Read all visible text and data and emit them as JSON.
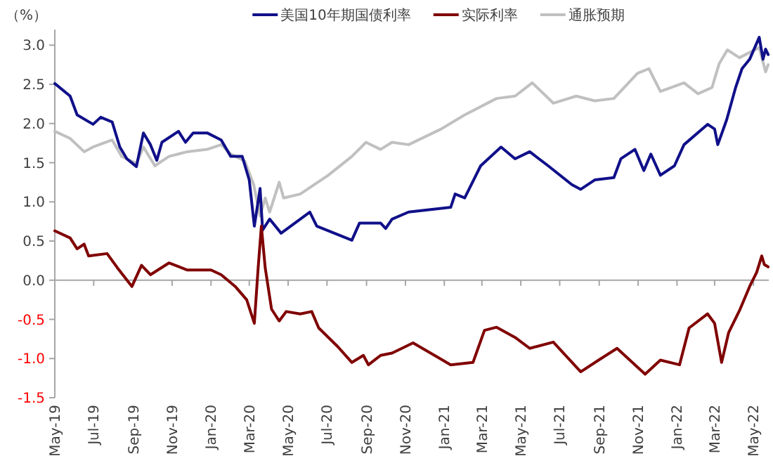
{
  "chart_data": {
    "type": "line",
    "ylabel": "（%）",
    "legend": "top",
    "marker": "none",
    "line_style": "solid",
    "xlim": [
      "2019-05-01",
      "2022-05-25"
    ],
    "ylim": [
      -1.5,
      3.2
    ],
    "yticks": [
      {
        "value": -1.5,
        "label": "-1.5"
      },
      {
        "value": -1,
        "label": "-1.0"
      },
      {
        "value": -0.5,
        "label": "-0.5"
      },
      {
        "value": 0,
        "label": "0.0"
      },
      {
        "value": 0.5,
        "label": "0.5"
      },
      {
        "value": 1,
        "label": "1.0"
      },
      {
        "value": 1.5,
        "label": "1.5"
      },
      {
        "value": 2,
        "label": "2.0"
      },
      {
        "value": 2.5,
        "label": "2.5"
      },
      {
        "value": 3,
        "label": "3.0"
      }
    ],
    "xticks": [
      {
        "value": "2019-05",
        "label": "May-19"
      },
      {
        "value": "2019-07",
        "label": "Jul-19"
      },
      {
        "value": "2019-09",
        "label": "Sep-19"
      },
      {
        "value": "2019-11",
        "label": "Nov-19"
      },
      {
        "value": "2020-01",
        "label": "Jan-20"
      },
      {
        "value": "2020-03",
        "label": "Mar-20"
      },
      {
        "value": "2020-05",
        "label": "May-20"
      },
      {
        "value": "2020-07",
        "label": "Jul-20"
      },
      {
        "value": "2020-09",
        "label": "Sep-20"
      },
      {
        "value": "2020-11",
        "label": "Nov-20"
      },
      {
        "value": "2021-01",
        "label": "Jan-21"
      },
      {
        "value": "2021-03",
        "label": "Mar-21"
      },
      {
        "value": "2021-05",
        "label": "May-21"
      },
      {
        "value": "2021-07",
        "label": "Jul-21"
      },
      {
        "value": "2021-09",
        "label": "Sep-21"
      },
      {
        "value": "2021-11",
        "label": "Nov-21"
      },
      {
        "value": "2022-01",
        "label": "Jan-22"
      },
      {
        "value": "2022-03",
        "label": "Mar-22"
      },
      {
        "value": "2022-05",
        "label": "May-22"
      }
    ],
    "series": [
      {
        "name": "美国10年期国债利率",
        "color": "#10108a",
        "x": [
          "2019-05-01",
          "2019-05-25",
          "2019-06-05",
          "2019-06-30",
          "2019-07-12",
          "2019-07-30",
          "2019-08-11",
          "2019-08-22",
          "2019-09-06",
          "2019-09-17",
          "2019-09-28",
          "2019-10-08",
          "2019-10-16",
          "2019-11-11",
          "2019-11-22",
          "2019-12-04",
          "2019-12-26",
          "2020-01-17",
          "2020-02-01",
          "2020-02-19",
          "2020-03-01",
          "2020-03-09",
          "2020-03-18",
          "2020-03-22",
          "2020-04-02",
          "2020-04-20",
          "2020-06-04",
          "2020-06-15",
          "2020-08-09",
          "2020-08-21",
          "2020-09-23",
          "2020-10-01",
          "2020-10-11",
          "2020-11-06",
          "2021-01-11",
          "2021-01-18",
          "2021-02-02",
          "2021-02-27",
          "2021-03-31",
          "2021-04-22",
          "2021-05-15",
          "2021-06-13",
          "2021-07-20",
          "2021-08-03",
          "2021-08-25",
          "2021-09-24",
          "2021-10-05",
          "2021-10-27",
          "2021-11-10",
          "2021-11-21",
          "2021-12-06",
          "2021-12-28",
          "2022-01-12",
          "2022-02-18",
          "2022-03-01",
          "2022-03-06",
          "2022-03-20",
          "2022-04-03",
          "2022-04-13",
          "2022-04-25",
          "2022-05-10",
          "2022-05-16",
          "2022-05-20",
          "2022-05-24"
        ],
        "values": [
          2.51,
          2.35,
          2.11,
          1.99,
          2.08,
          2.02,
          1.7,
          1.55,
          1.45,
          1.88,
          1.73,
          1.53,
          1.76,
          1.9,
          1.76,
          1.88,
          1.88,
          1.79,
          1.58,
          1.58,
          1.28,
          0.69,
          1.17,
          0.64,
          0.78,
          0.6,
          0.87,
          0.69,
          0.51,
          0.73,
          0.73,
          0.66,
          0.78,
          0.87,
          0.93,
          1.1,
          1.05,
          1.46,
          1.7,
          1.55,
          1.64,
          1.46,
          1.22,
          1.16,
          1.28,
          1.31,
          1.55,
          1.67,
          1.4,
          1.61,
          1.34,
          1.46,
          1.73,
          1.99,
          1.93,
          1.73,
          2.05,
          2.46,
          2.7,
          2.82,
          3.1,
          2.82,
          2.95,
          2.88
        ]
      },
      {
        "name": "实际利率",
        "color": "#800000",
        "x": [
          "2019-05-01",
          "2019-05-25",
          "2019-06-05",
          "2019-06-16",
          "2019-06-23",
          "2019-07-22",
          "2019-08-07",
          "2019-08-30",
          "2019-09-14",
          "2019-09-28",
          "2019-10-27",
          "2019-11-25",
          "2020-01-01",
          "2020-01-17",
          "2020-02-08",
          "2020-02-26",
          "2020-03-09",
          "2020-03-15",
          "2020-03-20",
          "2020-03-26",
          "2020-04-05",
          "2020-04-17",
          "2020-04-28",
          "2020-05-20",
          "2020-06-07",
          "2020-06-18",
          "2020-07-18",
          "2020-08-09",
          "2020-08-27",
          "2020-09-04",
          "2020-09-23",
          "2020-10-11",
          "2020-11-13",
          "2021-01-11",
          "2021-02-15",
          "2021-03-05",
          "2021-03-24",
          "2021-04-22",
          "2021-05-15",
          "2021-06-21",
          "2021-08-03",
          "2021-08-31",
          "2021-09-29",
          "2021-11-12",
          "2021-12-06",
          "2022-01-05",
          "2022-01-20",
          "2022-02-18",
          "2022-03-01",
          "2022-03-12",
          "2022-03-23",
          "2022-04-10",
          "2022-04-25",
          "2022-05-06",
          "2022-05-14",
          "2022-05-18",
          "2022-05-24"
        ],
        "values": [
          0.63,
          0.54,
          0.4,
          0.46,
          0.31,
          0.34,
          0.16,
          -0.08,
          0.19,
          0.07,
          0.22,
          0.13,
          0.13,
          0.07,
          -0.08,
          -0.25,
          -0.55,
          0.16,
          0.69,
          0.16,
          -0.37,
          -0.52,
          -0.4,
          -0.43,
          -0.4,
          -0.61,
          -0.85,
          -1.05,
          -0.96,
          -1.08,
          -0.96,
          -0.93,
          -0.8,
          -1.08,
          -1.05,
          -0.64,
          -0.6,
          -0.73,
          -0.87,
          -0.79,
          -1.17,
          -1.02,
          -0.87,
          -1.2,
          -1.02,
          -1.08,
          -0.61,
          -0.43,
          -0.55,
          -1.05,
          -0.67,
          -0.37,
          -0.08,
          0.1,
          0.31,
          0.2,
          0.17
        ]
      },
      {
        "name": "通胀预期",
        "color": "#c0c0c0",
        "x": [
          "2019-05-01",
          "2019-05-25",
          "2019-06-16",
          "2019-06-30",
          "2019-07-30",
          "2019-08-14",
          "2019-09-06",
          "2019-09-17",
          "2019-10-05",
          "2019-10-27",
          "2019-11-25",
          "2019-12-26",
          "2020-01-17",
          "2020-02-01",
          "2020-02-23",
          "2020-03-08",
          "2020-03-18",
          "2020-03-26",
          "2020-04-02",
          "2020-04-17",
          "2020-04-24",
          "2020-05-20",
          "2020-07-03",
          "2020-08-09",
          "2020-08-31",
          "2020-09-23",
          "2020-10-11",
          "2020-11-06",
          "2020-12-27",
          "2021-02-02",
          "2021-03-24",
          "2021-04-22",
          "2021-05-19",
          "2021-06-21",
          "2021-07-27",
          "2021-08-25",
          "2021-09-24",
          "2021-10-31",
          "2021-11-18",
          "2021-12-06",
          "2022-01-12",
          "2022-02-03",
          "2022-02-25",
          "2022-03-08",
          "2022-03-21",
          "2022-04-09",
          "2022-05-10",
          "2022-05-20",
          "2022-05-24"
        ],
        "values": [
          1.9,
          1.81,
          1.64,
          1.7,
          1.79,
          1.58,
          1.49,
          1.7,
          1.46,
          1.58,
          1.64,
          1.67,
          1.73,
          1.61,
          1.52,
          1.22,
          0.82,
          1.05,
          0.87,
          1.25,
          1.05,
          1.1,
          1.34,
          1.58,
          1.76,
          1.67,
          1.76,
          1.73,
          1.93,
          2.11,
          2.32,
          2.35,
          2.52,
          2.26,
          2.35,
          2.29,
          2.32,
          2.64,
          2.7,
          2.41,
          2.52,
          2.38,
          2.46,
          2.76,
          2.94,
          2.84,
          2.97,
          2.66,
          2.75
        ]
      }
    ]
  }
}
